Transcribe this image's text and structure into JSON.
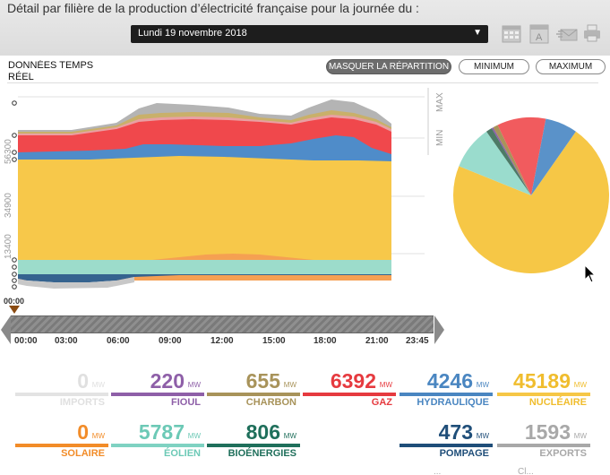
{
  "header": {
    "title": "Détail par filière de la production d’électricité française pour la journée du :",
    "date_value": "Lundi 19 novembre 2018",
    "dropdown_arrow": "▼"
  },
  "controls": {
    "realtime_label_line1": "DONNÉES TEMPS",
    "realtime_label_line2": "RÉEL",
    "hide_distribution": "MASQUER LA RÉPARTITION",
    "minimum": "MINIMUM",
    "maximum": "MAXIMUM"
  },
  "chart": {
    "y_ticks": [
      "56300",
      "34900",
      "13400"
    ],
    "max_label": "MAX",
    "min_label": "MIN",
    "start_time": "00:00",
    "hours": [
      "00:00",
      "03:00",
      "06:00",
      "09:00",
      "12:00",
      "15:00",
      "18:00",
      "21:00",
      "23:45"
    ]
  },
  "colors": {
    "imports": "#d9d9d9",
    "fioul": "#8e5fa8",
    "charbon": "#a8935a",
    "gaz": "#e63a3f",
    "hydraulique": "#4a86c1",
    "nucleaire": "#f6c746",
    "solaire": "#f28c28",
    "eolien": "#7fd2c2",
    "bioenergies": "#1f6f5b",
    "pompage": "#1f4e79",
    "exports": "#a8a8a8"
  },
  "stats": [
    {
      "key": "imports",
      "value": "0",
      "unit": "MW",
      "label": "IMPORTS",
      "color": "#e3e3e3",
      "text_color": "#e0e0e0"
    },
    {
      "key": "fioul",
      "value": "220",
      "unit": "MW",
      "label": "FIOUL",
      "color": "#8e5fa8",
      "text_color": "#8e5fa8"
    },
    {
      "key": "charbon",
      "value": "655",
      "unit": "MW",
      "label": "CHARBON",
      "color": "#a8935a",
      "text_color": "#a8935a"
    },
    {
      "key": "gaz",
      "value": "6392",
      "unit": "MW",
      "label": "GAZ",
      "color": "#e63a3f",
      "text_color": "#e63a3f"
    },
    {
      "key": "hydraulique",
      "value": "4246",
      "unit": "MW",
      "label": "HYDRAULIQUE",
      "color": "#4a86c1",
      "text_color": "#4a86c1"
    },
    {
      "key": "nucleaire",
      "value": "45189",
      "unit": "MW",
      "label": "NUCLÉAIRE",
      "color": "#f6c746",
      "text_color": "#f0bd2e"
    },
    {
      "key": "solaire",
      "value": "0",
      "unit": "MW",
      "label": "SOLAIRE",
      "color": "#f28c28",
      "text_color": "#f28c28"
    },
    {
      "key": "eolien",
      "value": "5787",
      "unit": "MW",
      "label": "ÉOLIEN",
      "color": "#7fd2c2",
      "text_color": "#6cc9b6"
    },
    {
      "key": "bioenergies",
      "value": "806",
      "unit": "MW",
      "label": "BIOÉNERGIES",
      "color": "#1f6f5b",
      "text_color": "#1f6f5b"
    },
    {
      "key": "pompage",
      "value": "473",
      "unit": "MW",
      "label": "POMPAGE",
      "color": "#1f4e79",
      "text_color": "#1f4e79"
    },
    {
      "key": "exports",
      "value": "1593",
      "unit": "MW",
      "label": "EXPORTS",
      "color": "#a8a8a8",
      "text_color": "#a8a8a8"
    }
  ],
  "pie": [
    {
      "name": "Nucléaire",
      "value": 45189,
      "color": "#f6c746"
    },
    {
      "name": "Éolien",
      "value": 5787,
      "color": "#9adccd"
    },
    {
      "name": "Bioénergies",
      "value": 806,
      "color": "#4d7a66"
    },
    {
      "name": "Fioul",
      "value": 220,
      "color": "#8e5fa8"
    },
    {
      "name": "Charbon",
      "value": 655,
      "color": "#a8935a"
    },
    {
      "name": "Gaz",
      "value": 6392,
      "color": "#f15b5e"
    },
    {
      "name": "Hydraulique",
      "value": 4246,
      "color": "#5a92c9"
    }
  ],
  "footer_partial": [
    "...",
    "Cl..."
  ]
}
